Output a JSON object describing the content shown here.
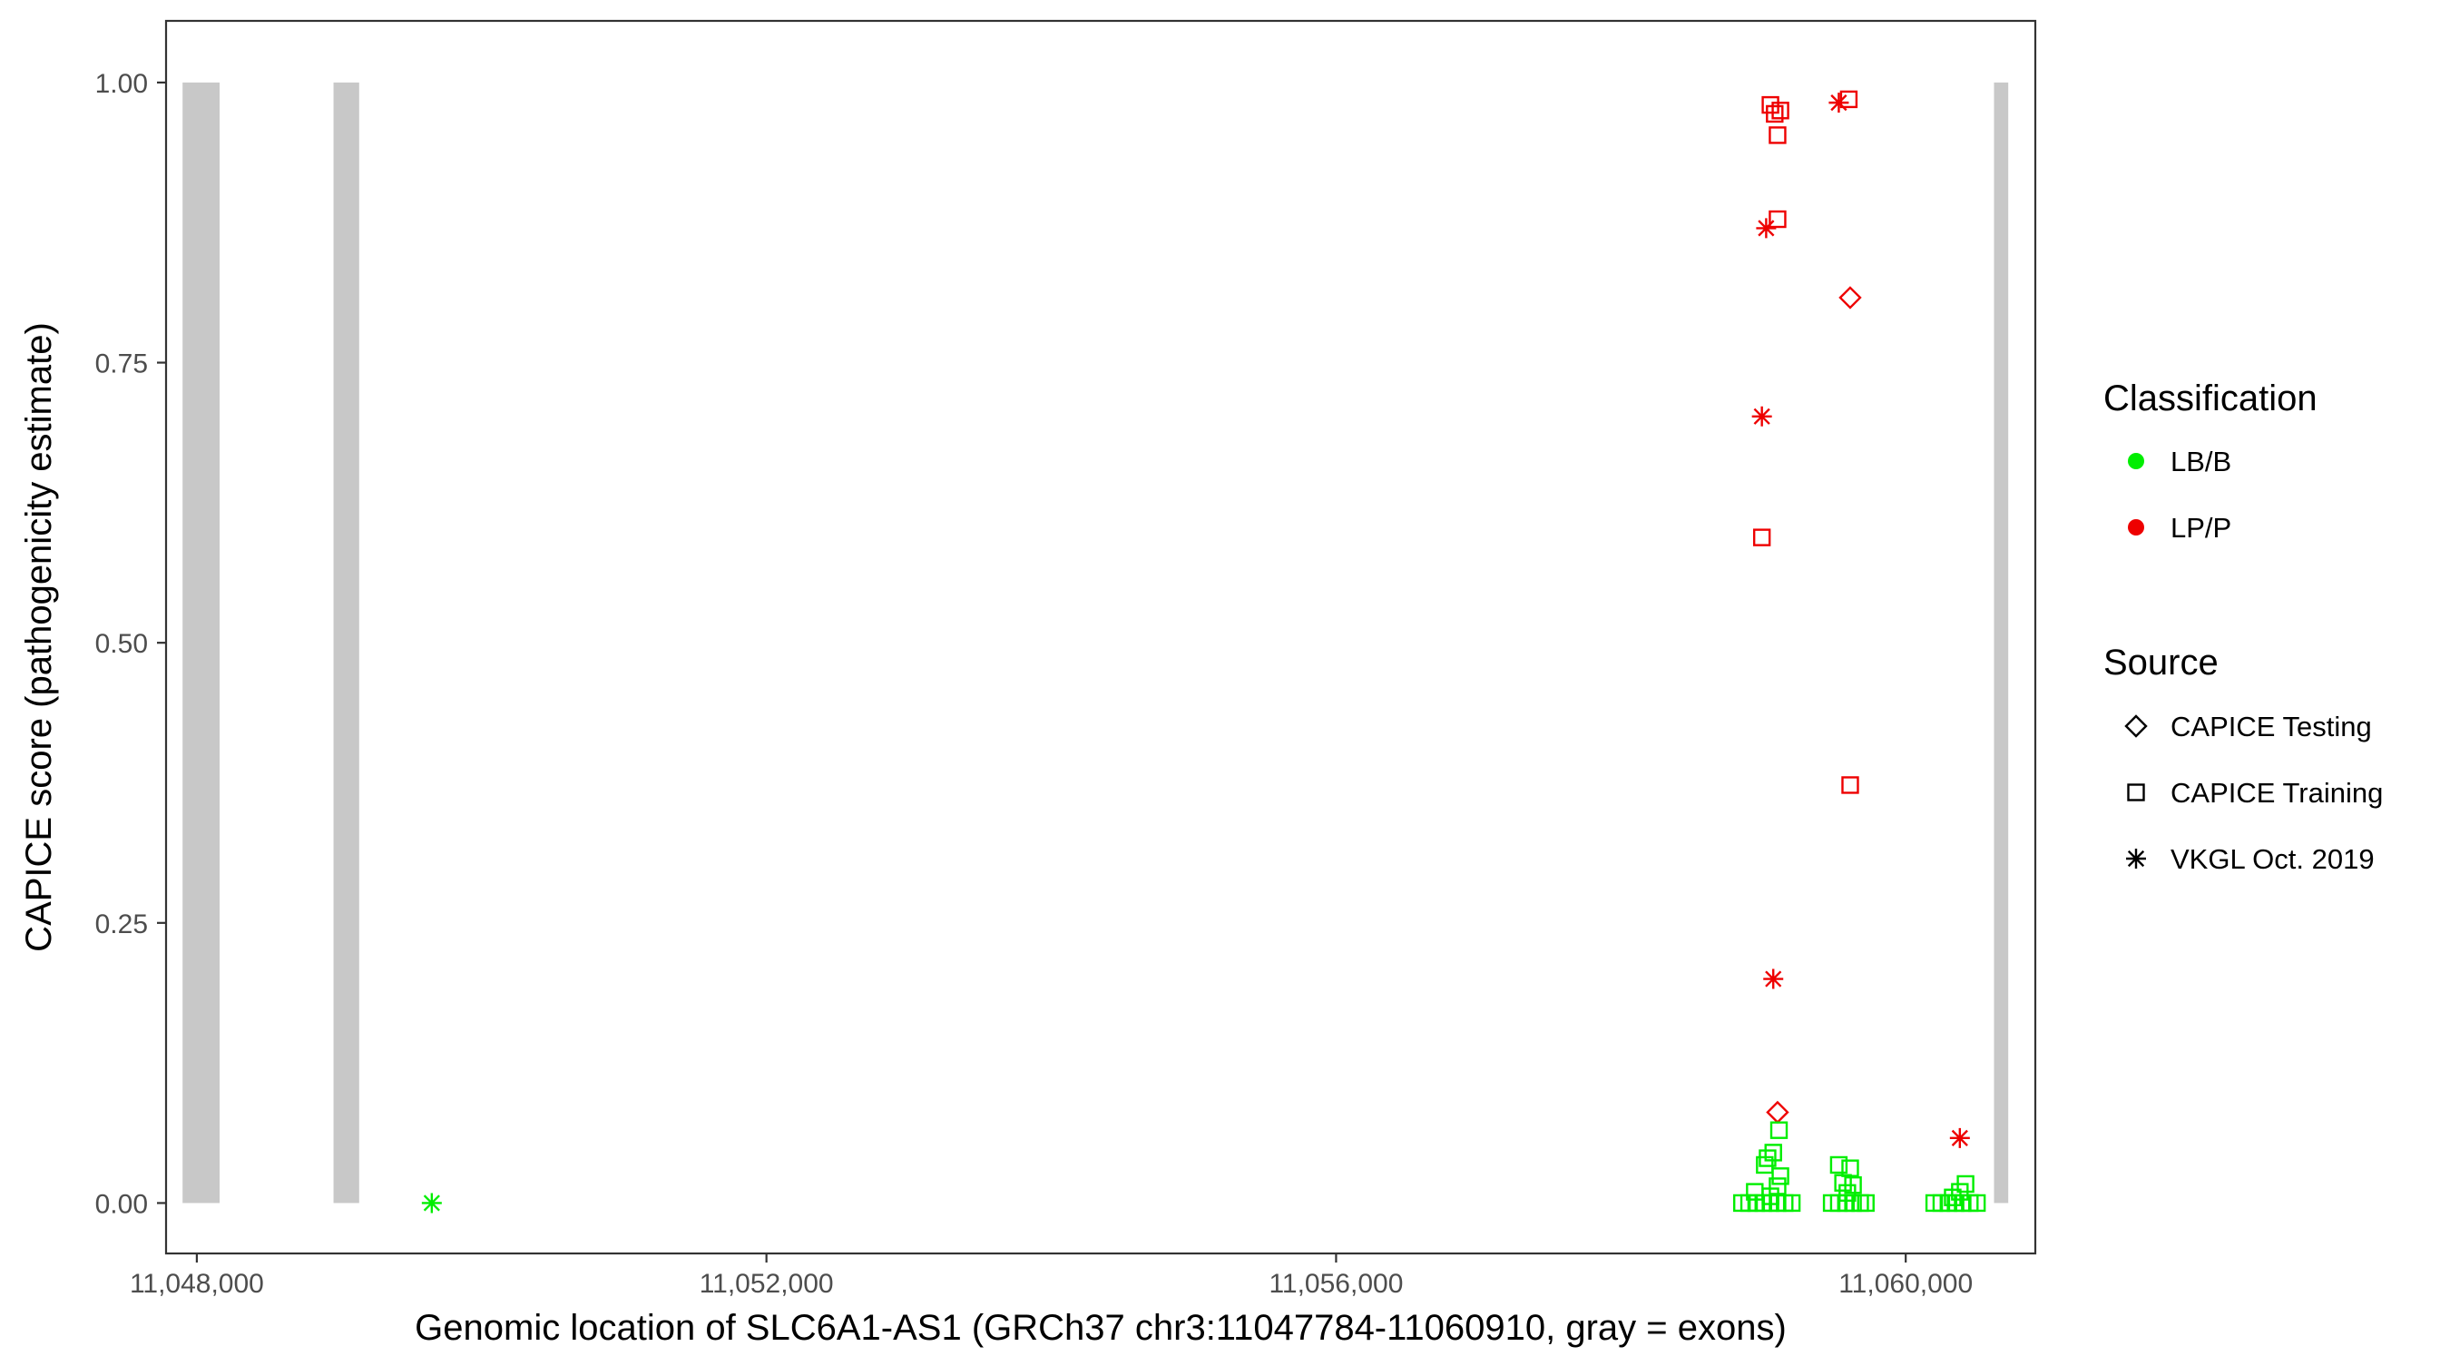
{
  "chart_data": {
    "type": "scatter",
    "xlabel": "Genomic location of SLC6A1-AS1 (GRCh37 chr3:11047784-11060910, gray = exons)",
    "ylabel": "CAPICE score (pathogenicity estimate)",
    "xlim": [
      11047784,
      11060910
    ],
    "ylim": [
      -0.045,
      1.055
    ],
    "x_ticks": [
      11048000,
      11052000,
      11056000,
      11060000
    ],
    "x_tick_labels": [
      "11,048,000",
      "11,052,000",
      "11,056,000",
      "11,060,000"
    ],
    "y_ticks": [
      0,
      0.25,
      0.5,
      0.75,
      1.0
    ],
    "y_tick_labels": [
      "0.00",
      "0.25",
      "0.50",
      "0.75",
      "1.00"
    ],
    "grid": false,
    "legend_placement": "right",
    "exons": [
      {
        "start": 11047900,
        "end": 11048160
      },
      {
        "start": 11048960,
        "end": 11049140
      },
      {
        "start": 11060620,
        "end": 11060720
      }
    ],
    "exon_color": "#c8c8c8",
    "legend": {
      "classification": {
        "title": "Classification",
        "items": [
          {
            "label": "LB/B",
            "color": "#00ee00"
          },
          {
            "label": "LP/P",
            "color": "#ee0000"
          }
        ]
      },
      "source": {
        "title": "Source",
        "items": [
          {
            "label": "CAPICE Testing",
            "shape": "diamond"
          },
          {
            "label": "CAPICE Training",
            "shape": "square"
          },
          {
            "label": "VKGL Oct. 2019",
            "shape": "asterisk"
          }
        ]
      }
    },
    "points": [
      {
        "x": 11049650,
        "y": 0.0,
        "class": "LB/B",
        "source": "VKGL Oct. 2019"
      },
      {
        "x": 11059050,
        "y": 0.98,
        "class": "LP/P",
        "source": "CAPICE Training"
      },
      {
        "x": 11059080,
        "y": 0.972,
        "class": "LP/P",
        "source": "CAPICE Training"
      },
      {
        "x": 11059120,
        "y": 0.975,
        "class": "LP/P",
        "source": "CAPICE Training"
      },
      {
        "x": 11059100,
        "y": 0.953,
        "class": "LP/P",
        "source": "CAPICE Training"
      },
      {
        "x": 11059600,
        "y": 0.985,
        "class": "LP/P",
        "source": "CAPICE Training"
      },
      {
        "x": 11059530,
        "y": 0.982,
        "class": "LP/P",
        "source": "VKGL Oct. 2019"
      },
      {
        "x": 11059100,
        "y": 0.878,
        "class": "LP/P",
        "source": "CAPICE Training"
      },
      {
        "x": 11059020,
        "y": 0.87,
        "class": "LP/P",
        "source": "VKGL Oct. 2019"
      },
      {
        "x": 11059610,
        "y": 0.808,
        "class": "LP/P",
        "source": "CAPICE Testing"
      },
      {
        "x": 11058990,
        "y": 0.702,
        "class": "LP/P",
        "source": "VKGL Oct. 2019"
      },
      {
        "x": 11058990,
        "y": 0.594,
        "class": "LP/P",
        "source": "CAPICE Training"
      },
      {
        "x": 11059610,
        "y": 0.373,
        "class": "LP/P",
        "source": "CAPICE Training"
      },
      {
        "x": 11059070,
        "y": 0.2,
        "class": "LP/P",
        "source": "VKGL Oct. 2019"
      },
      {
        "x": 11059100,
        "y": 0.081,
        "class": "LP/P",
        "source": "CAPICE Testing"
      },
      {
        "x": 11060380,
        "y": 0.058,
        "class": "LP/P",
        "source": "VKGL Oct. 2019"
      },
      {
        "x": 11059110,
        "y": 0.065,
        "class": "LB/B",
        "source": "CAPICE Training"
      },
      {
        "x": 11059070,
        "y": 0.045,
        "class": "LB/B",
        "source": "CAPICE Training"
      },
      {
        "x": 11059030,
        "y": 0.04,
        "class": "LB/B",
        "source": "CAPICE Training"
      },
      {
        "x": 11059010,
        "y": 0.034,
        "class": "LB/B",
        "source": "CAPICE Training"
      },
      {
        "x": 11059120,
        "y": 0.024,
        "class": "LB/B",
        "source": "CAPICE Training"
      },
      {
        "x": 11059100,
        "y": 0.015,
        "class": "LB/B",
        "source": "CAPICE Training"
      },
      {
        "x": 11058940,
        "y": 0.01,
        "class": "LB/B",
        "source": "CAPICE Training"
      },
      {
        "x": 11059050,
        "y": 0.006,
        "class": "LB/B",
        "source": "CAPICE Training"
      },
      {
        "x": 11058850,
        "y": 0.0,
        "class": "LB/B",
        "source": "CAPICE Training"
      },
      {
        "x": 11058900,
        "y": 0.0,
        "class": "LB/B",
        "source": "CAPICE Training"
      },
      {
        "x": 11058950,
        "y": 0.0,
        "class": "LB/B",
        "source": "CAPICE Training"
      },
      {
        "x": 11059000,
        "y": 0.0,
        "class": "LB/B",
        "source": "CAPICE Training"
      },
      {
        "x": 11059050,
        "y": 0.0,
        "class": "LB/B",
        "source": "CAPICE Training"
      },
      {
        "x": 11059100,
        "y": 0.0,
        "class": "LB/B",
        "source": "CAPICE Training"
      },
      {
        "x": 11059150,
        "y": 0.0,
        "class": "LB/B",
        "source": "CAPICE Training"
      },
      {
        "x": 11059200,
        "y": 0.0,
        "class": "LB/B",
        "source": "CAPICE Training"
      },
      {
        "x": 11059530,
        "y": 0.034,
        "class": "LB/B",
        "source": "CAPICE Training"
      },
      {
        "x": 11059610,
        "y": 0.031,
        "class": "LB/B",
        "source": "CAPICE Training"
      },
      {
        "x": 11059560,
        "y": 0.018,
        "class": "LB/B",
        "source": "CAPICE Training"
      },
      {
        "x": 11059630,
        "y": 0.016,
        "class": "LB/B",
        "source": "CAPICE Training"
      },
      {
        "x": 11059590,
        "y": 0.009,
        "class": "LB/B",
        "source": "CAPICE Training"
      },
      {
        "x": 11059480,
        "y": 0.0,
        "class": "LB/B",
        "source": "CAPICE Training"
      },
      {
        "x": 11059530,
        "y": 0.0,
        "class": "LB/B",
        "source": "CAPICE Training"
      },
      {
        "x": 11059580,
        "y": 0.0,
        "class": "LB/B",
        "source": "CAPICE Training"
      },
      {
        "x": 11059630,
        "y": 0.0,
        "class": "LB/B",
        "source": "CAPICE Training"
      },
      {
        "x": 11059680,
        "y": 0.0,
        "class": "LB/B",
        "source": "CAPICE Training"
      },
      {
        "x": 11059720,
        "y": 0.0,
        "class": "LB/B",
        "source": "CAPICE Training"
      },
      {
        "x": 11060420,
        "y": 0.017,
        "class": "LB/B",
        "source": "CAPICE Training"
      },
      {
        "x": 11060380,
        "y": 0.01,
        "class": "LB/B",
        "source": "CAPICE Training"
      },
      {
        "x": 11060330,
        "y": 0.005,
        "class": "LB/B",
        "source": "CAPICE Training"
      },
      {
        "x": 11060200,
        "y": 0.0,
        "class": "LB/B",
        "source": "CAPICE Training"
      },
      {
        "x": 11060250,
        "y": 0.0,
        "class": "LB/B",
        "source": "CAPICE Training"
      },
      {
        "x": 11060300,
        "y": 0.0,
        "class": "LB/B",
        "source": "CAPICE Training"
      },
      {
        "x": 11060350,
        "y": 0.0,
        "class": "LB/B",
        "source": "CAPICE Training"
      },
      {
        "x": 11060400,
        "y": 0.0,
        "class": "LB/B",
        "source": "CAPICE Training"
      },
      {
        "x": 11060450,
        "y": 0.0,
        "class": "LB/B",
        "source": "CAPICE Training"
      },
      {
        "x": 11060500,
        "y": 0.0,
        "class": "LB/B",
        "source": "CAPICE Training"
      }
    ]
  }
}
